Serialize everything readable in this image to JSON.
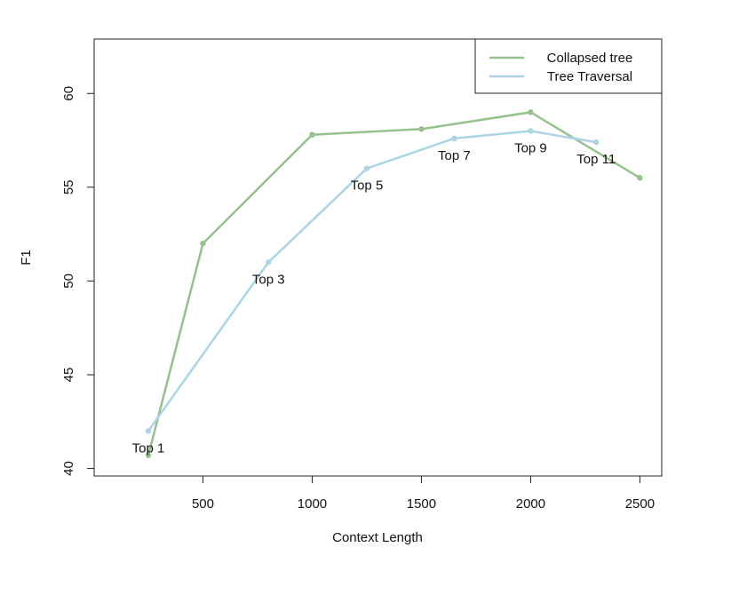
{
  "chart_data": {
    "type": "line",
    "xlabel": "Context Length",
    "ylabel": "F1",
    "xlim": [
      2,
      2600
    ],
    "ylim": [
      39.6,
      62.9
    ],
    "x_ticks": [
      500,
      1000,
      1500,
      2000,
      2500
    ],
    "y_ticks": [
      40,
      45,
      50,
      55,
      60
    ],
    "grid": false,
    "legend_position": "top-right",
    "series": [
      {
        "name": "Collapsed tree",
        "color": "#96c08e",
        "x": [
          250,
          500,
          1000,
          1500,
          2000,
          2500
        ],
        "y": [
          40.7,
          52.0,
          57.8,
          58.1,
          59.0,
          55.5
        ]
      },
      {
        "name": "Tree Traversal",
        "color": "#acd4e5",
        "x": [
          250,
          800,
          1250,
          1650,
          2000,
          2300
        ],
        "y": [
          42.0,
          51.0,
          56.0,
          57.6,
          58.0,
          57.4
        ]
      }
    ],
    "point_labels": [
      {
        "text": "Top 1",
        "x": 250,
        "y": 42.0
      },
      {
        "text": "Top 3",
        "x": 800,
        "y": 51.0
      },
      {
        "text": "Top 5",
        "x": 1250,
        "y": 56.0
      },
      {
        "text": "Top 7",
        "x": 1650,
        "y": 57.6
      },
      {
        "text": "Top 9",
        "x": 2000,
        "y": 58.0
      },
      {
        "text": "Top 11",
        "x": 2300,
        "y": 57.4
      }
    ]
  }
}
